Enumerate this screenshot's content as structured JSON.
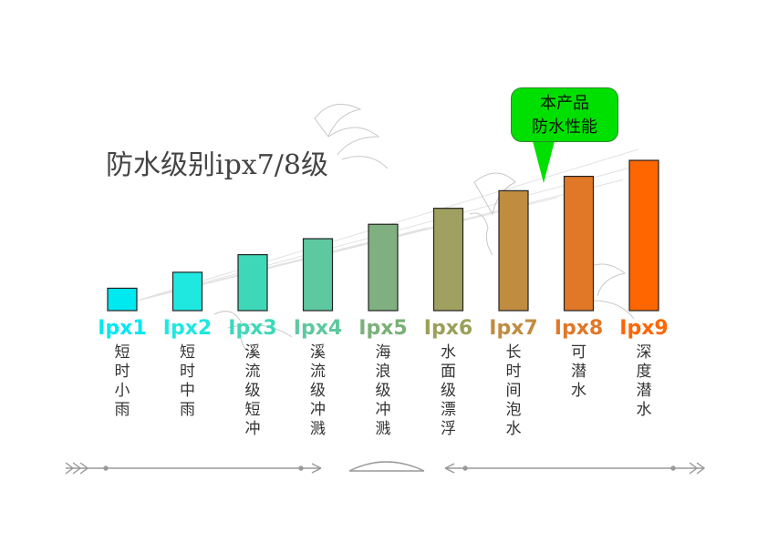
{
  "title": "防水级别ipx7/8级",
  "callout": {
    "lines": [
      "本产品",
      "防水性能"
    ]
  },
  "chart_data": {
    "type": "bar",
    "title": "防水级别ipx7/8级",
    "categories": [
      "Ipx1",
      "Ipx2",
      "Ipx3",
      "Ipx4",
      "Ipx5",
      "Ipx6",
      "Ipx7",
      "Ipx8",
      "Ipx9"
    ],
    "values": [
      1.4,
      2.4,
      3.5,
      4.5,
      5.4,
      6.4,
      7.5,
      8.4,
      9.4
    ],
    "descriptions": [
      "短时小雨",
      "短时中雨",
      "溪流级短冲",
      "溪流级冲溅",
      "海浪级冲溅",
      "水面级漂浮",
      "长时间泡水",
      "可潜水",
      "深度潜水"
    ],
    "colors": [
      "#00e8f0",
      "#1ee8e0",
      "#3ed8b8",
      "#5ec8a0",
      "#80b080",
      "#a0a060",
      "#c08c40",
      "#e07828",
      "#ff6600"
    ],
    "label_colors": [
      "#00e8f0",
      "#1ee8e0",
      "#3ed8b8",
      "#5ec8a0",
      "#7ab078",
      "#9aa058",
      "#c08c40",
      "#e07828",
      "#ff6600"
    ],
    "ylim": [
      0,
      10
    ],
    "highlight_range": [
      "Ipx7",
      "Ipx8"
    ],
    "grid": false
  }
}
